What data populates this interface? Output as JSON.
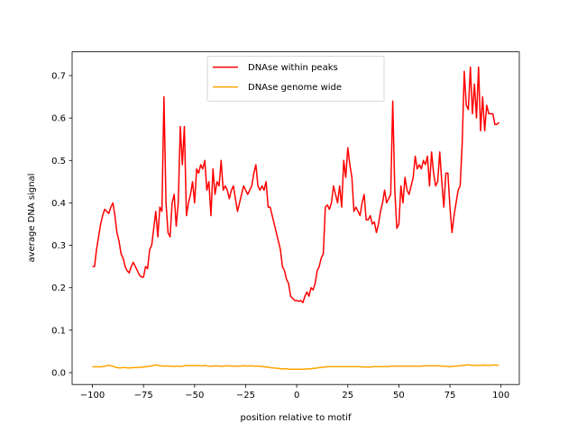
{
  "chart_data": {
    "type": "line",
    "xlabel": "position relative to motif",
    "ylabel": "average DNA signal",
    "xlim": [
      -109.95,
      108.95
    ],
    "ylim": [
      -0.028,
      0.756
    ],
    "xticks": [
      {
        "value": -100,
        "label": "−100"
      },
      {
        "value": -75,
        "label": "−75"
      },
      {
        "value": -50,
        "label": "−50"
      },
      {
        "value": -25,
        "label": "−25"
      },
      0,
      25,
      50,
      75,
      100
    ],
    "yticks": [
      {
        "value": 0,
        "label": "0.0"
      },
      0.1,
      0.2,
      0.3,
      0.4,
      0.5,
      0.6,
      0.7
    ],
    "legend": "upper center",
    "x": [
      -100,
      -99,
      -98,
      -97,
      -96,
      -95,
      -94,
      -93,
      -92,
      -91,
      -90,
      -89,
      -88,
      -87,
      -86,
      -85,
      -84,
      -83,
      -82,
      -81,
      -80,
      -79,
      -78,
      -77,
      -76,
      -75,
      -74,
      -73,
      -72,
      -71,
      -70,
      -69,
      -68,
      -67,
      -66,
      -65,
      -64,
      -63,
      -62,
      -61,
      -60,
      -59,
      -58,
      -57,
      -56,
      -55,
      -54,
      -53,
      -52,
      -51,
      -50,
      -49,
      -48,
      -47,
      -46,
      -45,
      -44,
      -43,
      -42,
      -41,
      -40,
      -39,
      -38,
      -37,
      -36,
      -35,
      -34,
      -33,
      -32,
      -31,
      -30,
      -29,
      -28,
      -27,
      -26,
      -25,
      -24,
      -23,
      -22,
      -21,
      -20,
      -19,
      -18,
      -17,
      -16,
      -15,
      -14,
      -13,
      -12,
      -11,
      -10,
      -9,
      -8,
      -7,
      -6,
      -5,
      -4,
      -3,
      -2,
      -1,
      0,
      1,
      2,
      3,
      4,
      5,
      6,
      7,
      8,
      9,
      10,
      11,
      12,
      13,
      14,
      15,
      16,
      17,
      18,
      19,
      20,
      21,
      22,
      23,
      24,
      25,
      26,
      27,
      28,
      29,
      30,
      31,
      32,
      33,
      34,
      35,
      36,
      37,
      38,
      39,
      40,
      41,
      42,
      43,
      44,
      45,
      46,
      47,
      48,
      49,
      50,
      51,
      52,
      53,
      54,
      55,
      56,
      57,
      58,
      59,
      60,
      61,
      62,
      63,
      64,
      65,
      66,
      67,
      68,
      69,
      70,
      71,
      72,
      73,
      74,
      75,
      76,
      77,
      78,
      79,
      80,
      81,
      82,
      83,
      84,
      85,
      86,
      87,
      88,
      89,
      90,
      91,
      92,
      93,
      94,
      95,
      96,
      97,
      98,
      99
    ],
    "series": [
      {
        "name": "DNAse within peaks",
        "color": "#ff0000",
        "values": [
          0.25,
          0.25,
          0.29,
          0.32,
          0.35,
          0.37,
          0.385,
          0.38,
          0.375,
          0.39,
          0.4,
          0.37,
          0.33,
          0.31,
          0.28,
          0.27,
          0.25,
          0.24,
          0.235,
          0.25,
          0.26,
          0.25,
          0.24,
          0.23,
          0.225,
          0.225,
          0.25,
          0.245,
          0.29,
          0.3,
          0.34,
          0.38,
          0.32,
          0.39,
          0.38,
          0.65,
          0.4,
          0.33,
          0.32,
          0.4,
          0.42,
          0.345,
          0.4,
          0.58,
          0.49,
          0.58,
          0.37,
          0.4,
          0.42,
          0.45,
          0.4,
          0.48,
          0.47,
          0.49,
          0.48,
          0.5,
          0.43,
          0.45,
          0.37,
          0.48,
          0.42,
          0.45,
          0.44,
          0.5,
          0.43,
          0.44,
          0.43,
          0.41,
          0.43,
          0.44,
          0.41,
          0.38,
          0.4,
          0.42,
          0.44,
          0.43,
          0.42,
          0.43,
          0.44,
          0.47,
          0.49,
          0.44,
          0.43,
          0.44,
          0.43,
          0.45,
          0.39,
          0.39,
          0.37,
          0.35,
          0.33,
          0.31,
          0.29,
          0.25,
          0.24,
          0.22,
          0.21,
          0.18,
          0.175,
          0.17,
          0.17,
          0.168,
          0.17,
          0.165,
          0.18,
          0.19,
          0.18,
          0.2,
          0.195,
          0.21,
          0.24,
          0.25,
          0.27,
          0.28,
          0.39,
          0.395,
          0.385,
          0.4,
          0.44,
          0.42,
          0.4,
          0.44,
          0.39,
          0.5,
          0.46,
          0.53,
          0.49,
          0.46,
          0.38,
          0.39,
          0.38,
          0.37,
          0.4,
          0.42,
          0.36,
          0.36,
          0.37,
          0.35,
          0.355,
          0.33,
          0.35,
          0.38,
          0.4,
          0.43,
          0.4,
          0.41,
          0.42,
          0.64,
          0.43,
          0.34,
          0.35,
          0.44,
          0.4,
          0.46,
          0.43,
          0.42,
          0.44,
          0.46,
          0.51,
          0.48,
          0.49,
          0.48,
          0.5,
          0.49,
          0.51,
          0.44,
          0.52,
          0.47,
          0.44,
          0.45,
          0.52,
          0.45,
          0.39,
          0.47,
          0.47,
          0.39,
          0.33,
          0.37,
          0.4,
          0.43,
          0.44,
          0.54,
          0.71,
          0.63,
          0.62,
          0.72,
          0.61,
          0.68,
          0.6,
          0.72,
          0.57,
          0.65,
          0.57,
          0.63,
          0.61,
          0.61,
          0.61,
          0.585,
          0.585,
          0.59
        ]
      },
      {
        "name": "DNAse genome wide",
        "color": "#ffa500",
        "values": [
          0.013,
          0.014,
          0.014,
          0.013,
          0.014,
          0.014,
          0.015,
          0.016,
          0.017,
          0.016,
          0.015,
          0.013,
          0.012,
          0.011,
          0.011,
          0.012,
          0.012,
          0.011,
          0.011,
          0.011,
          0.012,
          0.012,
          0.012,
          0.012,
          0.013,
          0.013,
          0.014,
          0.014,
          0.015,
          0.016,
          0.017,
          0.018,
          0.017,
          0.016,
          0.016,
          0.015,
          0.016,
          0.015,
          0.015,
          0.015,
          0.014,
          0.015,
          0.015,
          0.014,
          0.015,
          0.016,
          0.017,
          0.016,
          0.017,
          0.016,
          0.017,
          0.016,
          0.017,
          0.016,
          0.016,
          0.017,
          0.016,
          0.015,
          0.015,
          0.015,
          0.016,
          0.016,
          0.015,
          0.015,
          0.015,
          0.016,
          0.016,
          0.016,
          0.015,
          0.015,
          0.015,
          0.015,
          0.015,
          0.016,
          0.016,
          0.016,
          0.015,
          0.016,
          0.016,
          0.015,
          0.015,
          0.015,
          0.015,
          0.014,
          0.014,
          0.013,
          0.013,
          0.012,
          0.011,
          0.011,
          0.01,
          0.01,
          0.009,
          0.009,
          0.009,
          0.009,
          0.008,
          0.008,
          0.008,
          0.008,
          0.008,
          0.008,
          0.008,
          0.008,
          0.008,
          0.009,
          0.009,
          0.009,
          0.01,
          0.01,
          0.011,
          0.012,
          0.012,
          0.013,
          0.013,
          0.014,
          0.014,
          0.014,
          0.014,
          0.014,
          0.014,
          0.014,
          0.014,
          0.014,
          0.014,
          0.014,
          0.014,
          0.014,
          0.014,
          0.014,
          0.014,
          0.014,
          0.013,
          0.014,
          0.013,
          0.013,
          0.013,
          0.014,
          0.014,
          0.014,
          0.014,
          0.014,
          0.014,
          0.014,
          0.014,
          0.014,
          0.015,
          0.015,
          0.015,
          0.015,
          0.015,
          0.015,
          0.015,
          0.015,
          0.015,
          0.015,
          0.015,
          0.015,
          0.015,
          0.015,
          0.015,
          0.015,
          0.016,
          0.016,
          0.016,
          0.016,
          0.016,
          0.016,
          0.016,
          0.016,
          0.016,
          0.015,
          0.015,
          0.015,
          0.014,
          0.014,
          0.014,
          0.015,
          0.015,
          0.016,
          0.016,
          0.017,
          0.017,
          0.018,
          0.018,
          0.018,
          0.017,
          0.017,
          0.017,
          0.017,
          0.017,
          0.017,
          0.018,
          0.017,
          0.017,
          0.017,
          0.018,
          0.018,
          0.017,
          0.017
        ]
      }
    ]
  }
}
